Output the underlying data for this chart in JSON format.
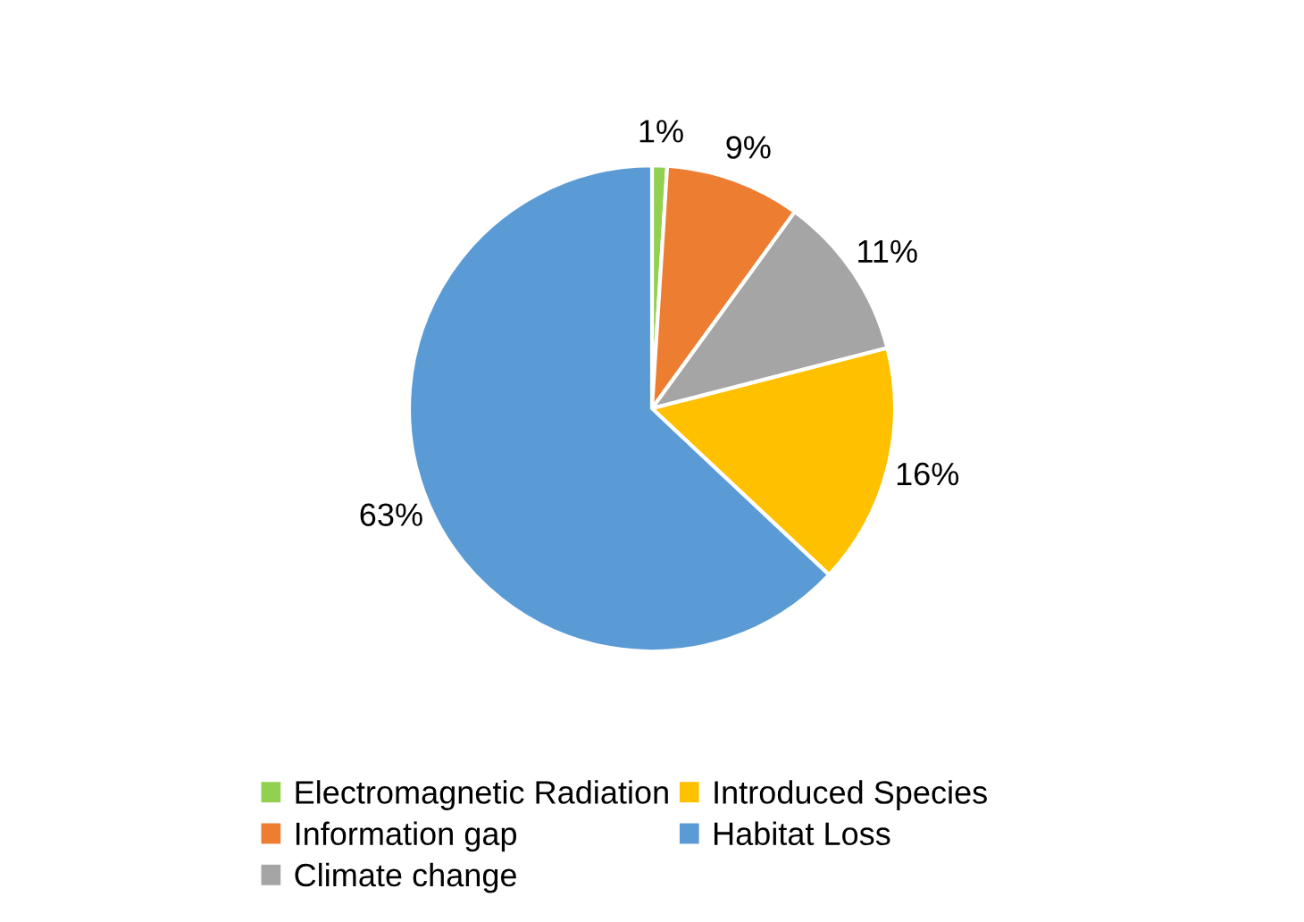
{
  "chart_data": {
    "type": "pie",
    "categories": [
      "Electromagnetic Radiation",
      "Information gap",
      "Climate change",
      "Introduced Species",
      "Habitat Loss"
    ],
    "values": [
      1,
      9,
      11,
      16,
      63
    ],
    "colors": [
      "#92d050",
      "#ed7d31",
      "#a5a5a5",
      "#ffc000",
      "#5b9bd5"
    ],
    "value_labels": [
      "1%",
      "9%",
      "11%",
      "16%",
      "63%"
    ],
    "legend": "bottom"
  }
}
